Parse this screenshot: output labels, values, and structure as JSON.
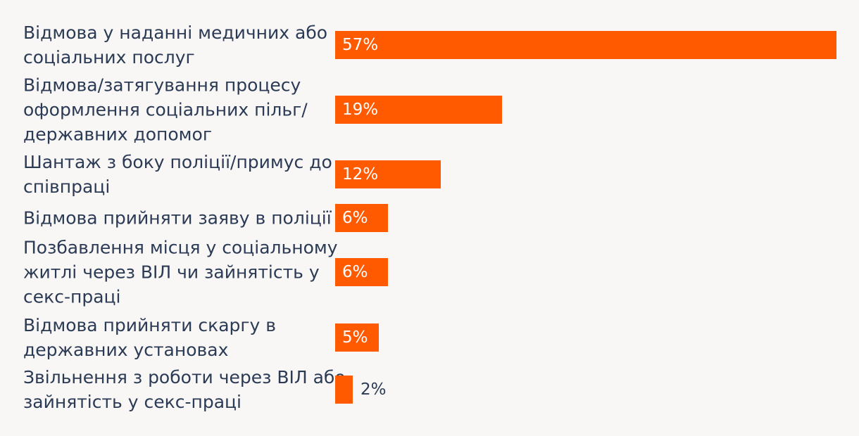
{
  "chart_data": {
    "type": "bar",
    "orientation": "horizontal",
    "title": "",
    "xlabel": "",
    "ylabel": "",
    "categories": [
      [
        "Відмова у наданні медичних або",
        "соціальних послуг"
      ],
      [
        "Відмова/затягування процесу",
        "оформлення соціальних пільг/",
        "державних допомог"
      ],
      [
        "Шантаж з боку поліції/примус до",
        "співпраці"
      ],
      [
        "Відмова прийняти заяву в поліції"
      ],
      [
        "Позбавлення місця у соціальному",
        "житлі через ВІЛ чи зайнятість у",
        "секс-праці"
      ],
      [
        "Відмова прийняти скаргу в",
        "державних установах"
      ],
      [
        "Звільнення з роботи через ВІЛ або",
        "зайнятість у секс-праці"
      ]
    ],
    "values": [
      57,
      19,
      12,
      6,
      6,
      5,
      2
    ],
    "value_labels": [
      "57%",
      "19%",
      "12%",
      "6%",
      "6%",
      "5%",
      "2%"
    ],
    "unit": "%",
    "xlim": [
      0,
      57
    ],
    "bar_color": "#ff5a00",
    "grid": false,
    "legend": "none"
  }
}
